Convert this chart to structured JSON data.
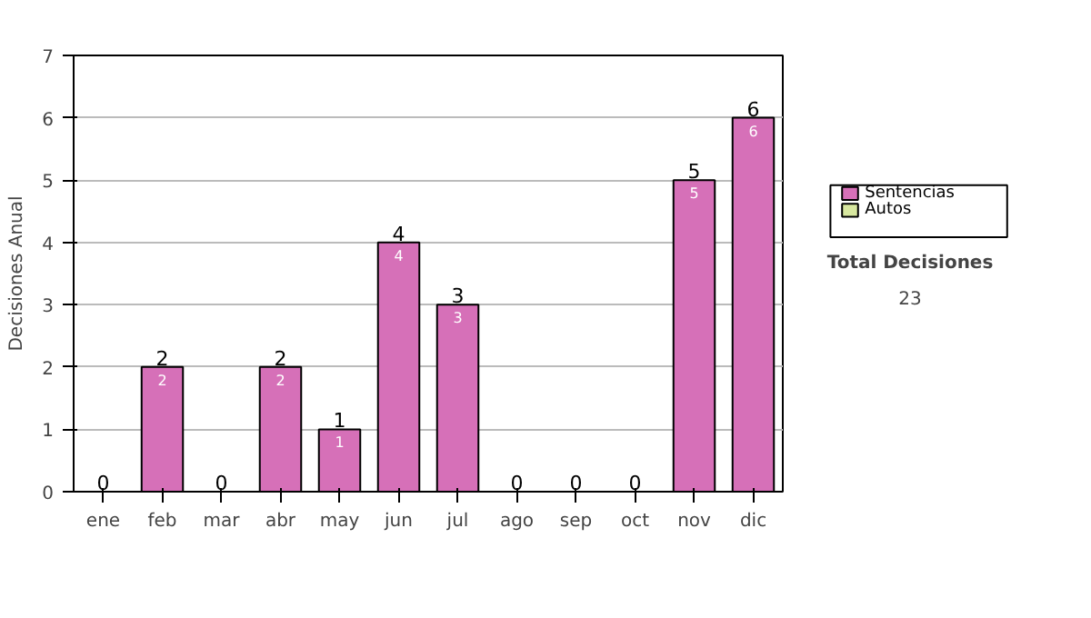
{
  "chart_data": {
    "type": "bar",
    "stacked": true,
    "ylabel": "Decisiones Anual",
    "categories": [
      "ene",
      "feb",
      "mar",
      "abr",
      "may",
      "jun",
      "jul",
      "ago",
      "sep",
      "oct",
      "nov",
      "dic"
    ],
    "series": [
      {
        "name": "Sentencias",
        "color": "#d670b8",
        "values": [
          0,
          2,
          0,
          2,
          1,
          4,
          3,
          0,
          0,
          0,
          5,
          6
        ],
        "value_labels": [
          null,
          "2",
          null,
          "2",
          "1",
          "4",
          "3",
          null,
          null,
          null,
          "5",
          "6"
        ]
      },
      {
        "name": "Autos",
        "color": "#d8e8a0",
        "values": [
          0,
          0,
          0,
          0,
          0,
          0,
          0,
          0,
          0,
          0,
          0,
          0
        ]
      }
    ],
    "totals": [
      "0",
      "2",
      "0",
      "2",
      "1",
      "4",
      "3",
      "0",
      "0",
      "0",
      "5",
      "6"
    ],
    "ylim": [
      0,
      7
    ],
    "yticks": [
      0,
      1,
      2,
      3,
      4,
      5,
      6,
      7
    ],
    "grid": "y",
    "legend": "right",
    "annotations": [
      "Total Decisiones",
      "23"
    ]
  }
}
